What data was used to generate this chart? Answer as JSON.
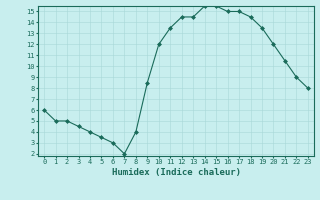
{
  "x": [
    0,
    1,
    2,
    3,
    4,
    5,
    6,
    7,
    8,
    9,
    10,
    11,
    12,
    13,
    14,
    15,
    16,
    17,
    18,
    19,
    20,
    21,
    22,
    23
  ],
  "y": [
    6.0,
    5.0,
    5.0,
    4.5,
    4.0,
    3.5,
    3.0,
    2.0,
    4.0,
    8.5,
    12.0,
    13.5,
    14.5,
    14.5,
    15.5,
    15.5,
    15.0,
    15.0,
    14.5,
    13.5,
    12.0,
    10.5,
    9.0,
    8.0
  ],
  "xlabel": "Humidex (Indice chaleur)",
  "line_color": "#1a6b5a",
  "marker": "D",
  "marker_size": 2.0,
  "bg_color": "#c8eeee",
  "grid_color": "#a8d8d8",
  "ylim": [
    1.8,
    15.5
  ],
  "xlim": [
    -0.5,
    23.5
  ],
  "yticks": [
    2,
    3,
    4,
    5,
    6,
    7,
    8,
    9,
    10,
    11,
    12,
    13,
    14,
    15
  ],
  "xticks": [
    0,
    1,
    2,
    3,
    4,
    5,
    6,
    7,
    8,
    9,
    10,
    11,
    12,
    13,
    14,
    15,
    16,
    17,
    18,
    19,
    20,
    21,
    22,
    23
  ],
  "tick_label_size": 5.0,
  "xlabel_size": 6.5,
  "linewidth": 0.8
}
